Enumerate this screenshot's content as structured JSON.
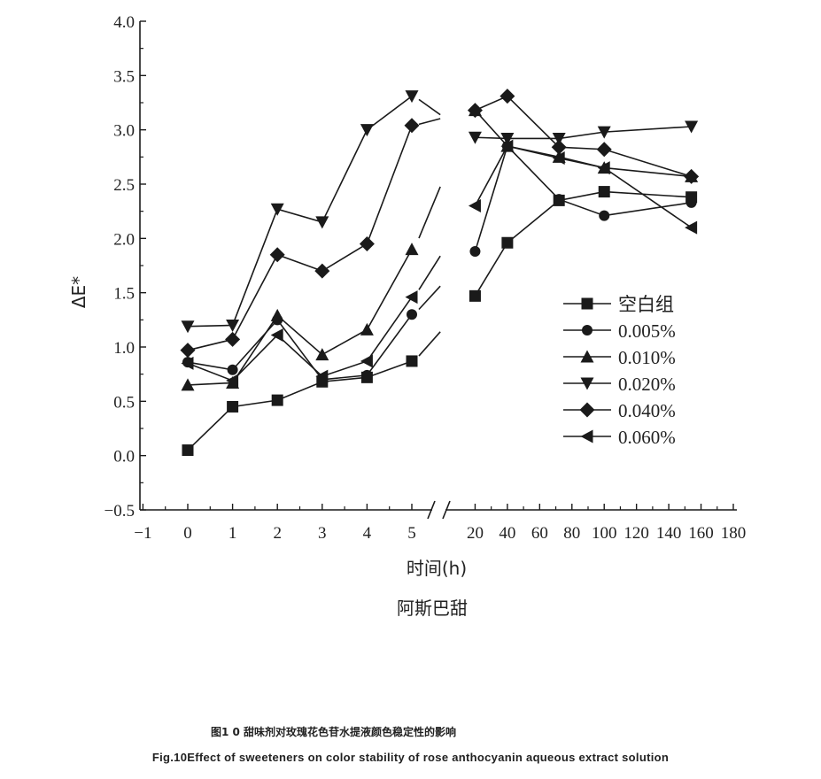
{
  "chart_data": {
    "type": "line",
    "ylabel": "ΔE*",
    "xlabel": "时间(h)",
    "subtitle": "阿斯巴甜",
    "ylim": [
      -0.5,
      4.0
    ],
    "y_ticks": [
      "−0.5",
      "0.0",
      "0.5",
      "1.0",
      "1.5",
      "2.0",
      "2.5",
      "3.0",
      "3.5",
      "4.0"
    ],
    "x_axis_break": true,
    "x_ticks_left": [
      "−1",
      "0",
      "1",
      "2",
      "3",
      "4",
      "5"
    ],
    "x_ticks_right": [
      "20",
      "40",
      "60",
      "80",
      "100",
      "120",
      "140",
      "160",
      "180"
    ],
    "legend_position": "center-right",
    "series": [
      {
        "name": "空白组",
        "marker": "square",
        "left": {
          "x": [
            0,
            1,
            2,
            3,
            4,
            5
          ],
          "y": [
            0.05,
            0.45,
            0.51,
            0.68,
            0.72,
            0.87
          ]
        },
        "right": {
          "x": [
            20,
            40,
            72,
            100,
            154
          ],
          "y": [
            1.47,
            1.96,
            2.35,
            2.43,
            2.38
          ]
        }
      },
      {
        "name": "0.005%",
        "marker": "circle",
        "left": {
          "x": [
            0,
            1,
            2,
            3,
            4,
            5
          ],
          "y": [
            0.86,
            0.79,
            1.25,
            0.7,
            0.74,
            1.3
          ]
        },
        "right": {
          "x": [
            20,
            40,
            72,
            100,
            154
          ],
          "y": [
            1.88,
            2.85,
            2.36,
            2.21,
            2.33
          ]
        }
      },
      {
        "name": "0.010%",
        "marker": "triangle-up",
        "left": {
          "x": [
            0,
            1,
            2,
            3,
            4,
            5
          ],
          "y": [
            0.65,
            0.67,
            1.29,
            0.93,
            1.16,
            1.9
          ]
        },
        "right": {
          "x": [
            20,
            40,
            72,
            100,
            154
          ],
          "y": [
            3.18,
            2.85,
            2.75,
            2.65,
            2.57
          ]
        }
      },
      {
        "name": "0.020%",
        "marker": "triangle-down",
        "left": {
          "x": [
            0,
            1,
            2,
            3,
            4,
            5
          ],
          "y": [
            1.19,
            1.2,
            2.27,
            2.15,
            3.0,
            3.31
          ]
        },
        "right": {
          "x": [
            20,
            40,
            72,
            100,
            154
          ],
          "y": [
            2.93,
            2.92,
            2.92,
            2.98,
            3.03
          ]
        }
      },
      {
        "name": "0.040%",
        "marker": "diamond",
        "left": {
          "x": [
            0,
            1,
            2,
            3,
            4,
            5
          ],
          "y": [
            0.97,
            1.07,
            1.85,
            1.7,
            1.95,
            3.04
          ]
        },
        "right": {
          "x": [
            20,
            40,
            72,
            100,
            154
          ],
          "y": [
            3.18,
            3.31,
            2.84,
            2.82,
            2.57
          ]
        }
      },
      {
        "name": "0.060%",
        "marker": "triangle-left",
        "left": {
          "x": [
            0,
            1,
            2,
            3,
            4,
            5
          ],
          "y": [
            0.85,
            0.69,
            1.11,
            0.73,
            0.87,
            1.46
          ]
        },
        "right": {
          "x": [
            20,
            40,
            72,
            100,
            154
          ],
          "y": [
            2.3,
            2.85,
            2.74,
            2.65,
            2.1
          ]
        }
      }
    ]
  },
  "caption": {
    "cn": "图1 0 甜味剂对玫瑰花色苷水提液颜色稳定性的影响",
    "en": "Fig.10Effect of sweeteners on color stability of rose anthocyanin aqueous extract solution"
  }
}
